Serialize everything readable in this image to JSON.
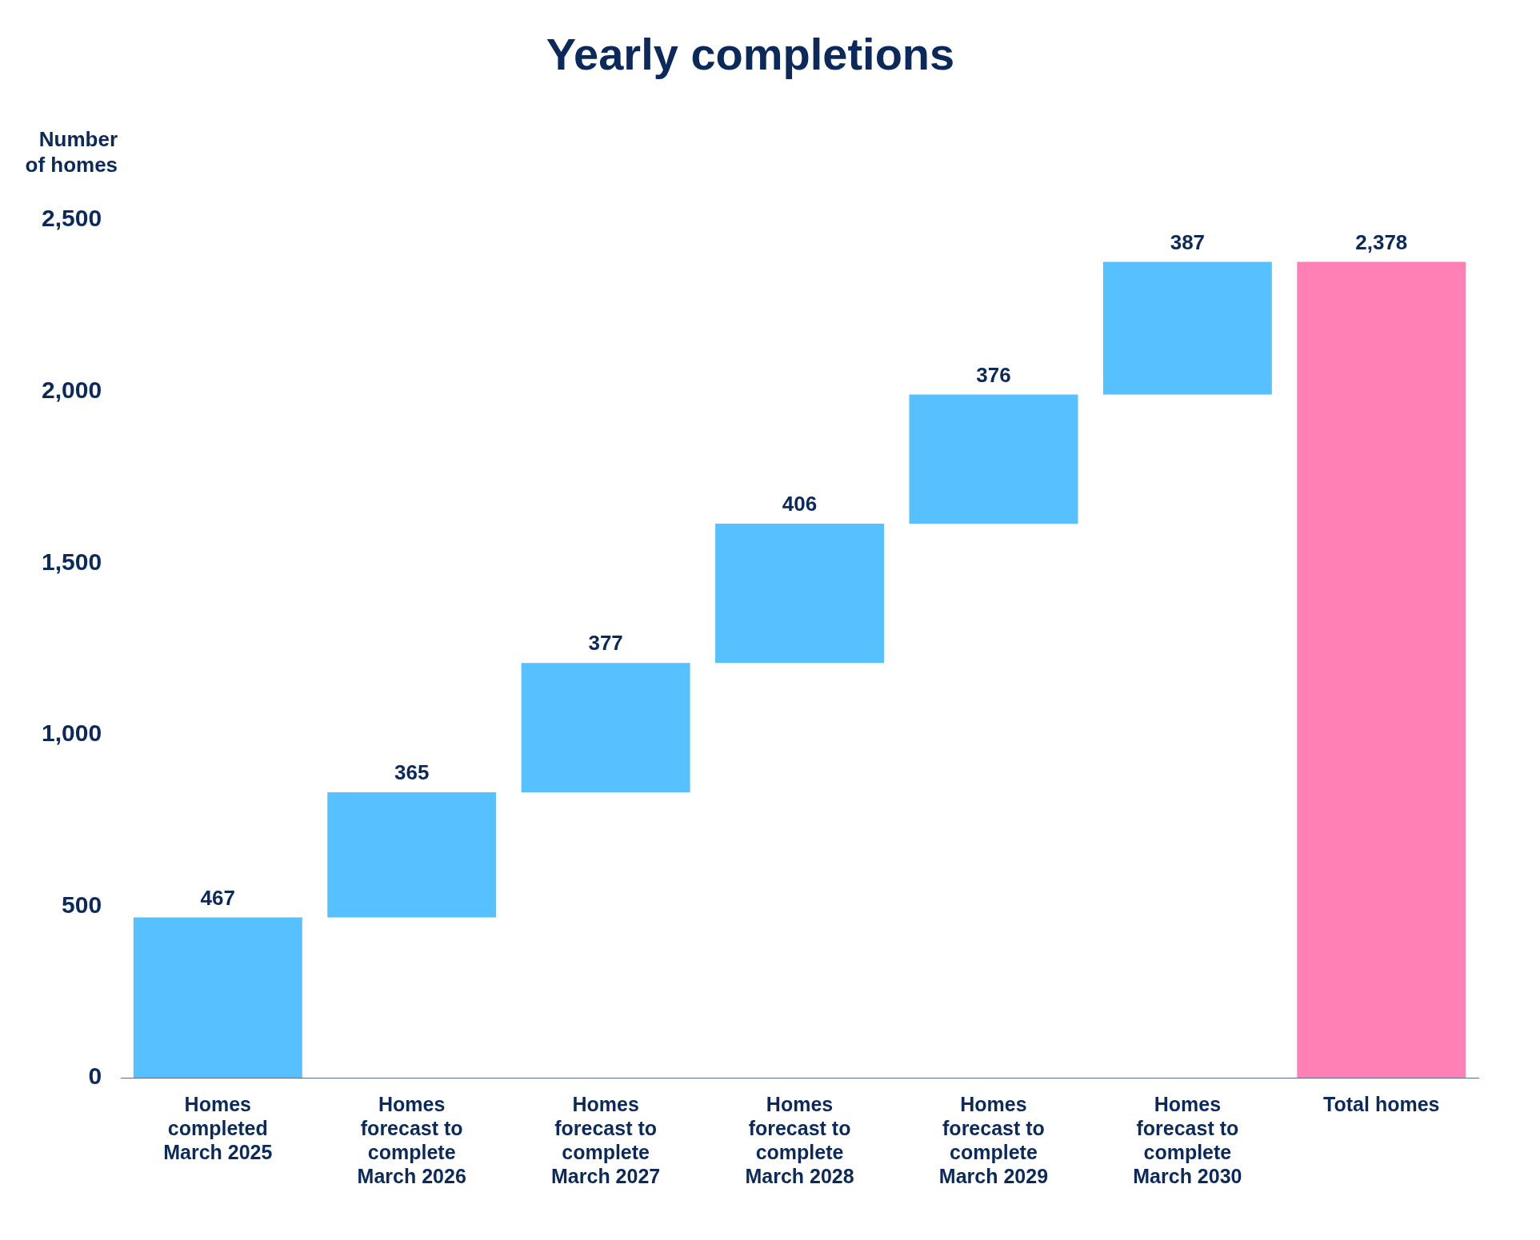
{
  "chart_data": {
    "type": "bar",
    "title": "Yearly completions",
    "ylabel": "Number of homes",
    "categories": [
      "Homes completed March 2025",
      "Homes forecast to complete March 2026",
      "Homes forecast to complete March 2027",
      "Homes forecast to complete March 2028",
      "Homes forecast to complete March 2029",
      "Homes forecast to complete March 2030",
      "Total homes"
    ],
    "values": [
      467,
      365,
      377,
      406,
      376,
      387,
      2378
    ],
    "base": [
      0,
      467,
      832,
      1209,
      1615,
      1991,
      0
    ],
    "colors": [
      "#56c1fe",
      "#56c1fe",
      "#56c1fe",
      "#56c1fe",
      "#56c1fe",
      "#56c1fe",
      "#ff80b4"
    ],
    "value_labels": [
      "467",
      "365",
      "377",
      "406",
      "376",
      "387",
      "2,378"
    ],
    "ylim": [
      0,
      2500
    ],
    "yticks": [
      0,
      500,
      {
        "value": 1000,
        "label": "1,000"
      },
      {
        "value": 1500,
        "label": "1,500"
      },
      {
        "value": 2000,
        "label": "2,000"
      },
      {
        "value": 2500,
        "label": "2,500"
      }
    ],
    "grid": false,
    "legend": false
  }
}
